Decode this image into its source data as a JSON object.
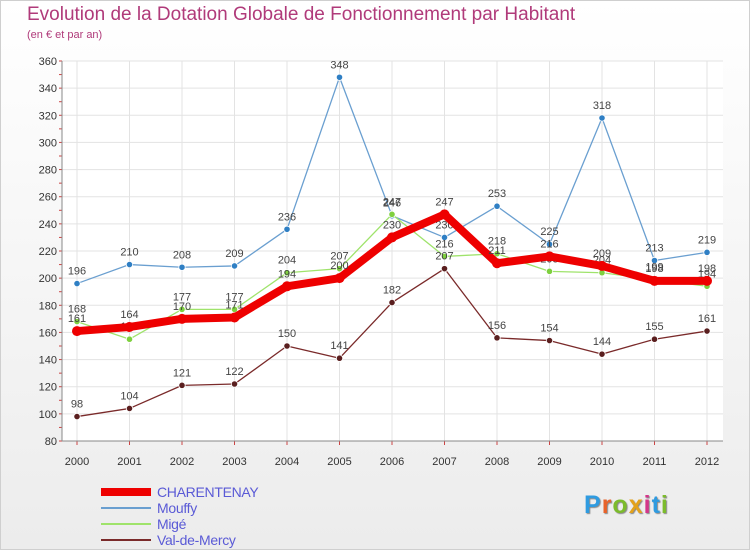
{
  "header": {
    "title": "Evolution de la Dotation Globale de Fonctionnement par Habitant",
    "subtitle": "(en € et par an)"
  },
  "brand": {
    "name": "Proxiti",
    "letters": [
      "P",
      "r",
      "o",
      "x",
      "i",
      "t",
      "i"
    ],
    "colors": [
      "#2f9be0",
      "#e8632a",
      "#7cbb2c",
      "#e3a21c",
      "#d4368a",
      "#2f9be0",
      "#7cbb2c"
    ]
  },
  "chart_data": {
    "type": "line",
    "title": "Evolution de la Dotation Globale de Fonctionnement par Habitant",
    "subtitle": "(en € et par an)",
    "xlabel": "",
    "ylabel": "",
    "categories": [
      "2000",
      "2001",
      "2002",
      "2003",
      "2004",
      "2005",
      "2006",
      "2007",
      "2008",
      "2009",
      "2010",
      "2011",
      "2012"
    ],
    "ylim": [
      80,
      360
    ],
    "yticks": [
      80,
      100,
      120,
      140,
      160,
      180,
      200,
      220,
      240,
      260,
      280,
      300,
      320,
      340,
      360
    ],
    "grid": true,
    "legend_position": "bottom-left",
    "series": [
      {
        "name": "Mouffy",
        "color": "#6a9fd0",
        "marker": "#2f7fc4",
        "values": [
          196,
          210,
          208,
          209,
          236,
          348,
          246,
          230,
          253,
          225,
          318,
          213,
          219
        ],
        "labels": [
          "196",
          "210",
          "208",
          "209",
          "236",
          "348",
          "246",
          "230",
          "253",
          "225",
          "318",
          "213",
          "219"
        ]
      },
      {
        "name": "Migé",
        "color": "#9fe36b",
        "marker": "#7ed03e",
        "values": [
          168,
          155,
          177,
          177,
          204,
          207,
          247,
          216,
          218,
          205,
          204,
          199,
          194
        ],
        "labels": [
          "168",
          "155",
          "177",
          "177",
          "204",
          "207",
          "247",
          "216",
          "218",
          "205",
          "204",
          "199",
          "194"
        ]
      },
      {
        "name": "Val-de-Mercy",
        "color": "#7a2a2a",
        "marker": "#5a1f1f",
        "values": [
          98,
          104,
          121,
          122,
          150,
          141,
          182,
          207,
          156,
          154,
          144,
          155,
          161
        ],
        "labels": [
          "98",
          "104",
          "121",
          "122",
          "150",
          "141",
          "182",
          "207",
          "156",
          "154",
          "144",
          "155",
          "161"
        ]
      },
      {
        "name": "CHARENTENAY",
        "color": "#ee0000",
        "marker": "#ee0000",
        "values": [
          161,
          164,
          170,
          171,
          194,
          200,
          230,
          247,
          211,
          216,
          209,
          198,
          198
        ],
        "labels": [
          "161",
          "164",
          "170",
          "171",
          "194",
          "200",
          "230",
          "247",
          "211",
          "216",
          "209",
          "198",
          "198"
        ]
      }
    ],
    "legend_order": [
      "CHARENTENAY",
      "Mouffy",
      "Migé",
      "Val-de-Mercy"
    ]
  }
}
